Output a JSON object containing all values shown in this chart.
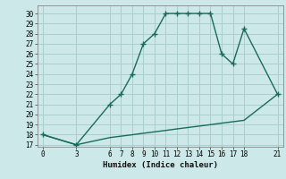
{
  "xlabel": "Humidex (Indice chaleur)",
  "bg_color": "#cce8e8",
  "line_color": "#1a6b5a",
  "grid_color": "#aacece",
  "xticks": [
    0,
    3,
    6,
    7,
    8,
    9,
    10,
    11,
    12,
    13,
    14,
    15,
    16,
    17,
    18,
    21
  ],
  "yticks": [
    17,
    18,
    19,
    20,
    21,
    22,
    23,
    24,
    25,
    26,
    27,
    28,
    29,
    30
  ],
  "ylim": [
    16.8,
    30.8
  ],
  "xlim": [
    -0.5,
    21.5
  ],
  "curve1_x": [
    0,
    3,
    6,
    7,
    8,
    9,
    10,
    11,
    12,
    13,
    14,
    15,
    16,
    17,
    18,
    21
  ],
  "curve1_y": [
    18,
    17,
    21,
    22,
    24,
    27,
    28,
    30,
    30,
    30,
    30,
    30,
    26,
    25,
    28.5,
    22
  ],
  "curve2_x": [
    0,
    3,
    6,
    7,
    8,
    9,
    10,
    11,
    12,
    13,
    14,
    15,
    16,
    17,
    18,
    21
  ],
  "curve2_y": [
    18,
    17,
    17.71,
    17.85,
    17.99,
    18.14,
    18.28,
    18.42,
    18.57,
    18.71,
    18.85,
    18.99,
    19.14,
    19.28,
    19.42,
    22
  ]
}
